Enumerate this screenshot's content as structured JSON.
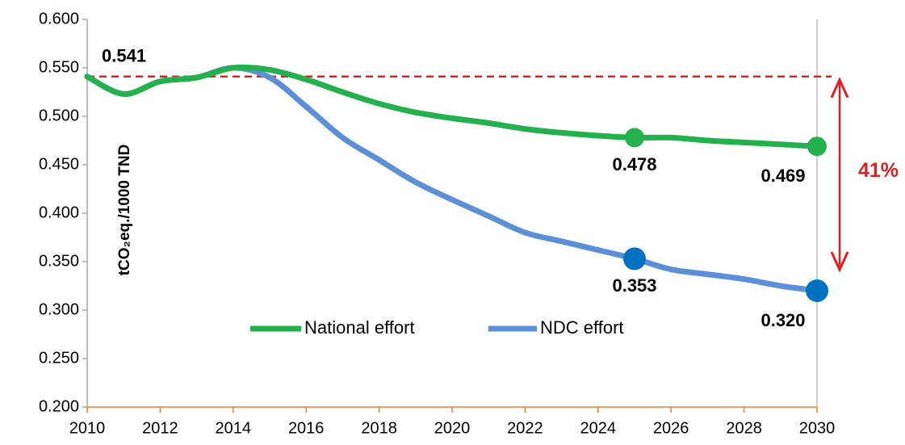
{
  "chart_data": {
    "type": "line",
    "y_label": "tCO₂eq./1000 TND",
    "x": [
      2010,
      2011,
      2012,
      2013,
      2014,
      2015,
      2016,
      2017,
      2018,
      2019,
      2020,
      2021,
      2022,
      2023,
      2024,
      2025,
      2026,
      2027,
      2028,
      2029,
      2030
    ],
    "series": [
      {
        "name": "National effort",
        "color": "#22b14c",
        "values": [
          0.541,
          0.523,
          0.536,
          0.54,
          0.55,
          0.548,
          0.538,
          0.525,
          0.513,
          0.504,
          0.498,
          0.493,
          0.487,
          0.483,
          0.48,
          0.478,
          0.478,
          0.475,
          0.473,
          0.471,
          0.469
        ],
        "value_labels": [
          "0.541",
          null,
          null,
          null,
          null,
          null,
          null,
          null,
          null,
          null,
          null,
          null,
          null,
          null,
          null,
          "0.478",
          null,
          null,
          null,
          null,
          "0.469"
        ]
      },
      {
        "name": "NDC effort",
        "color": "#5b8fd8",
        "marker_color": "#0070c0",
        "values": [
          0.541,
          0.523,
          0.536,
          0.54,
          0.55,
          0.54,
          0.51,
          0.478,
          0.455,
          0.432,
          0.414,
          0.397,
          0.38,
          0.371,
          0.362,
          0.353,
          0.342,
          0.337,
          0.332,
          0.325,
          0.32
        ],
        "value_labels": [
          null,
          null,
          null,
          null,
          null,
          null,
          null,
          null,
          null,
          null,
          null,
          null,
          null,
          null,
          null,
          "0.353",
          null,
          null,
          null,
          null,
          "0.320"
        ]
      }
    ],
    "reference_line": {
      "value": 0.541,
      "color": "#e02020"
    },
    "annotation": {
      "text": "41%",
      "color": "#e02020"
    },
    "xlim": [
      2010,
      2030
    ],
    "xticks": [
      2010,
      2012,
      2014,
      2016,
      2018,
      2020,
      2022,
      2024,
      2026,
      2028,
      2030
    ],
    "ylim": [
      0.2,
      0.6
    ],
    "yticks": [
      {
        "value": 0.2,
        "label": "0.200"
      },
      {
        "value": 0.25,
        "label": "0.250"
      },
      {
        "value": 0.3,
        "label": "0.300"
      },
      {
        "value": 0.35,
        "label": "0.350"
      },
      {
        "value": 0.4,
        "label": "0.400"
      },
      {
        "value": 0.45,
        "label": "0.450"
      },
      {
        "value": 0.5,
        "label": "0.500"
      },
      {
        "value": 0.55,
        "label": "0.550"
      },
      {
        "value": 0.6,
        "label": "0.600"
      }
    ]
  }
}
